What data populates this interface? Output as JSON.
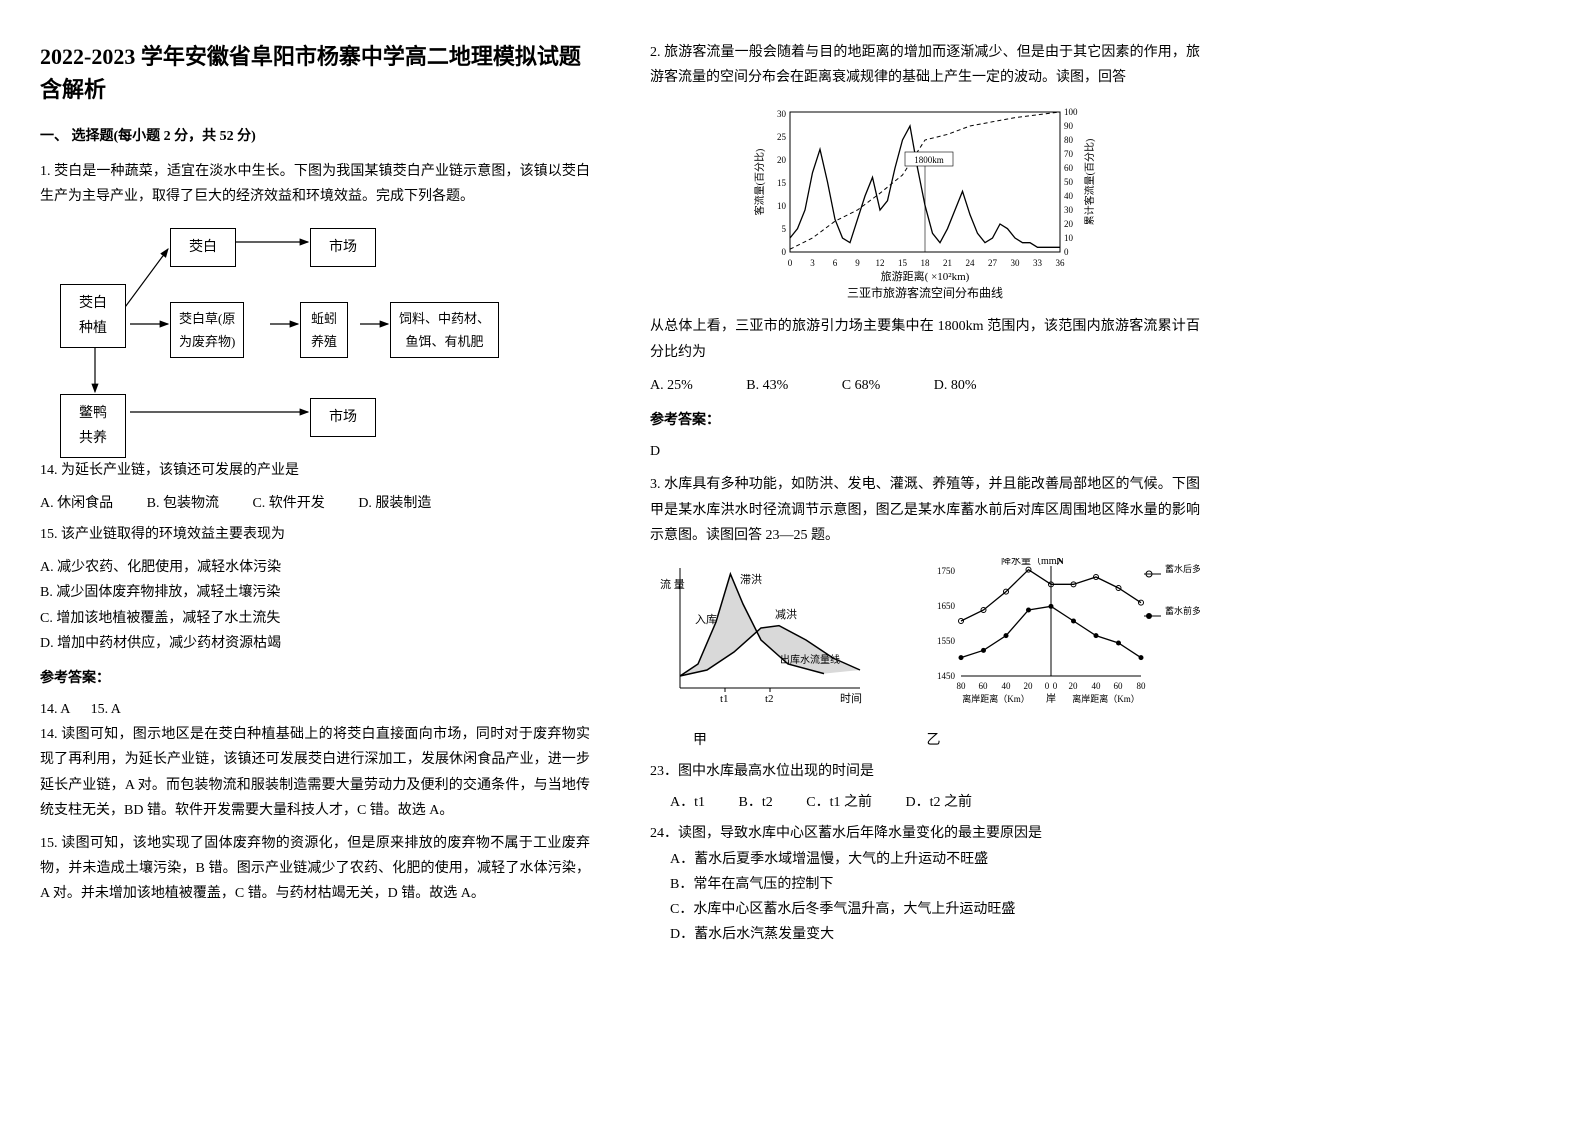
{
  "title": "2022-2023 学年安徽省阜阳市杨寨中学高二地理模拟试题含解析",
  "section1": "一、 选择题(每小题 2 分，共 52 分)",
  "q1": {
    "stem": "1. 茭白是一种蔬菜，适宜在淡水中生长。下图为我国某镇茭白产业链示意图，该镇以茭白生产为主导产业，取得了巨大的经济效益和环境效益。完成下列各题。",
    "nodes": {
      "jiaobai": "茭白",
      "shichang1": "市场",
      "zhongzhi": "茭白\n种植",
      "cao": "茭白草(原\n为废弃物)",
      "qiuyin": "蚯蚓\n养殖",
      "siliao": "饲料、中药材、\n鱼饵、有机肥",
      "bieya": "鳖鸭\n共养",
      "shichang2": "市场"
    },
    "q14": "14.  为延长产业链，该镇还可发展的产业是",
    "opts14": {
      "A": "A.  休闲食品",
      "B": "B.  包装物流",
      "C": "C.  软件开发",
      "D": "D.  服装制造"
    },
    "q15": "15.  该产业链取得的环境效益主要表现为",
    "opts15": {
      "A": "A.  减少农药、化肥使用，减轻水体污染",
      "B": "B.  减少固体废弃物排放，减轻土壤污染",
      "C": "C.  增加该地植被覆盖，减轻了水土流失",
      "D": "D.  增加中药材供应，减少药材资源枯竭"
    },
    "ansLabel": "参考答案：",
    "ans": "14. A      15. A",
    "exp14": "14.  读图可知，图示地区是在茭白种植基础上的将茭白直接面向市场，同时对于废弃物实现了再利用，为延长产业链，该镇还可发展茭白进行深加工，发展休闲食品产业，进一步延长产业链，A 对。而包装物流和服装制造需要大量劳动力及便利的交通条件，与当地传统支柱无关，BD 错。软件开发需要大量科技人才，C 错。故选 A。",
    "exp15": "15.  读图可知，该地实现了固体废弃物的资源化，但是原来排放的废弃物不属于工业废弃物，并未造成土壤污染，B 错。图示产业链减少了农药、化肥的使用，减轻了水体污染，A 对。并未增加该地植被覆盖，C 错。与药材枯竭无关，D 错。故选 A。"
  },
  "q2": {
    "stem": "2. 旅游客流量一般会随着与目的地距离的增加而逐渐减少、但是由于其它因素的作用，旅游客流量的空间分布会在距离衰减规律的基础上产生一定的波动。读图，回答",
    "chart": {
      "type": "line",
      "xlabel": "旅游距离( ×10²km)",
      "ylabel_left": "客流量(百分比)",
      "ylabel_right": "累计客流量(百分比)",
      "xticks": [
        0,
        3,
        6,
        9,
        12,
        15,
        18,
        21,
        24,
        27,
        30,
        33,
        36
      ],
      "yticks_left": [
        0,
        5,
        10,
        15,
        20,
        25,
        30
      ],
      "yticks_right": [
        0,
        10,
        20,
        30,
        40,
        50,
        60,
        70,
        80,
        90,
        100
      ],
      "caption": "三亚市旅游客流空间分布曲线",
      "series1_color": "#000000",
      "series2_style": "dashed",
      "bg": "#ffffff",
      "annotation": "1800km",
      "line_data": [
        [
          0,
          3
        ],
        [
          1,
          5
        ],
        [
          2,
          9
        ],
        [
          3,
          17
        ],
        [
          4,
          22
        ],
        [
          5,
          15
        ],
        [
          6,
          7
        ],
        [
          7,
          3
        ],
        [
          8,
          2
        ],
        [
          9,
          7
        ],
        [
          10,
          12
        ],
        [
          11,
          16
        ],
        [
          12,
          9
        ],
        [
          13,
          11
        ],
        [
          14,
          18
        ],
        [
          15,
          24
        ],
        [
          16,
          27
        ],
        [
          17,
          18
        ],
        [
          18,
          10
        ],
        [
          19,
          4
        ],
        [
          20,
          2
        ],
        [
          21,
          5
        ],
        [
          22,
          9
        ],
        [
          23,
          13
        ],
        [
          24,
          8
        ],
        [
          25,
          4
        ],
        [
          26,
          2
        ],
        [
          27,
          3
        ],
        [
          28,
          6
        ],
        [
          29,
          5
        ],
        [
          30,
          3
        ],
        [
          31,
          2
        ],
        [
          32,
          2
        ],
        [
          33,
          1
        ],
        [
          34,
          1
        ],
        [
          35,
          1
        ],
        [
          36,
          1
        ]
      ],
      "cum_data": [
        [
          0,
          2
        ],
        [
          3,
          10
        ],
        [
          6,
          22
        ],
        [
          9,
          30
        ],
        [
          12,
          42
        ],
        [
          15,
          55
        ],
        [
          18,
          80
        ],
        [
          21,
          84
        ],
        [
          24,
          90
        ],
        [
          27,
          93
        ],
        [
          30,
          96
        ],
        [
          33,
          98
        ],
        [
          36,
          100
        ]
      ]
    },
    "sub": "从总体上看，三亚市的旅游引力场主要集中在 1800km 范围内，该范围内旅游客流累计百分比约为",
    "opts": {
      "A": "A.  25%",
      "B": "B.  43%",
      "C": "C    68%",
      "D": "D.  80%"
    },
    "ansLabel": "参考答案：",
    "ans": "D"
  },
  "q3": {
    "stem": "3. 水库具有多种功能，如防洪、发电、灌溉、养殖等，并且能改善局部地区的气候。下图甲是某水库洪水时径流调节示意图，图乙是某水库蓄水前后对库区周围地区降水量的影响示意图。读图回答 23—25 题。",
    "figA": {
      "labels": {
        "y": "流\n量",
        "x": "时间",
        "flood_in": "入库",
        "flood_store": "滞洪",
        "flood_cut": "减洪",
        "outflow": "出库水流量线",
        "t1": "t1",
        "t2": "t2"
      },
      "curve_in": [
        [
          0,
          10
        ],
        [
          10,
          20
        ],
        [
          20,
          55
        ],
        [
          28,
          95
        ],
        [
          35,
          70
        ],
        [
          45,
          40
        ],
        [
          60,
          20
        ],
        [
          80,
          12
        ]
      ],
      "curve_out": [
        [
          0,
          10
        ],
        [
          15,
          15
        ],
        [
          30,
          30
        ],
        [
          45,
          50
        ],
        [
          55,
          52
        ],
        [
          70,
          40
        ],
        [
          85,
          25
        ],
        [
          100,
          15
        ]
      ],
      "line_color": "#000000"
    },
    "figB": {
      "ylabel": "降水量（mm）",
      "yticks": [
        1450,
        1550,
        1650,
        1750
      ],
      "xlabel_left": "离岸距离（Km）",
      "xlabel_right": "离岸距离（Km）",
      "xticks_left": [
        80,
        60,
        40,
        20,
        0
      ],
      "xticks_right": [
        0,
        20,
        40,
        60,
        80
      ],
      "center_label": "岸",
      "legend1": "蓄水后多年平\n均降水量线",
      "legend2": "蓄水前多年平\n均降水量线",
      "north": "N",
      "series": {
        "after": [
          [
            -80,
            1600
          ],
          [
            -60,
            1630
          ],
          [
            -40,
            1680
          ],
          [
            -20,
            1740
          ],
          [
            0,
            1700
          ],
          [
            20,
            1700
          ],
          [
            40,
            1720
          ],
          [
            60,
            1690
          ],
          [
            80,
            1650
          ]
        ],
        "before": [
          [
            -80,
            1500
          ],
          [
            -60,
            1520
          ],
          [
            -40,
            1560
          ],
          [
            -20,
            1630
          ],
          [
            0,
            1640
          ],
          [
            20,
            1600
          ],
          [
            40,
            1560
          ],
          [
            60,
            1540
          ],
          [
            80,
            1500
          ]
        ]
      },
      "fontsize": 11
    },
    "capA": "甲",
    "capB": "乙",
    "q23": "23．图中水库最高水位出现的时间是",
    "opts23": {
      "A": "A．t1",
      "B": "B．t2",
      "C": "C．t1 之前",
      "D": "D．t2 之前"
    },
    "q24": "24．读图，导致水库中心区蓄水后年降水量变化的最主要原因是",
    "opts24": {
      "A": "A．蓄水后夏季水域增温慢，大气的上升运动不旺盛",
      "B": "B．常年在高气压的控制下",
      "C": "C．水库中心区蓄水后冬季气温升高，大气上升运动旺盛",
      "D": "D．蓄水后水汽蒸发量变大"
    }
  }
}
